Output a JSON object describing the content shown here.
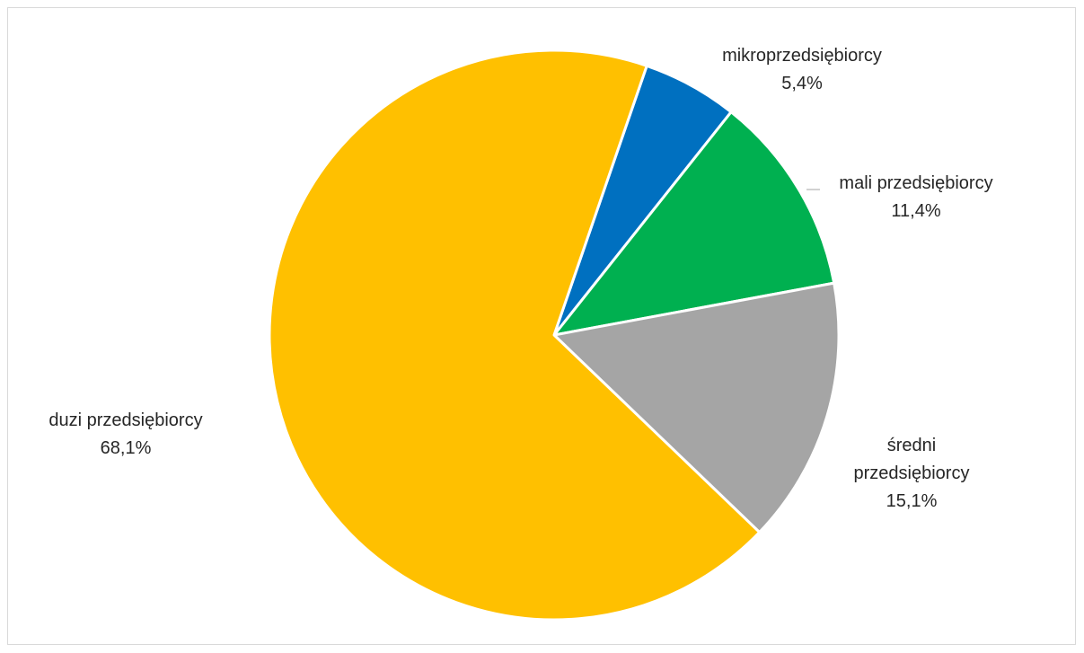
{
  "chart_data": {
    "type": "pie",
    "title": "",
    "legend": "none",
    "unit": "%",
    "slices": [
      {
        "name": "mikroprzedsiębiorcy",
        "label_lines": [
          "mikroprzedsiębiorcy"
        ],
        "value": 5.4,
        "display": "5,4%",
        "color": "#0070C0"
      },
      {
        "name": "mali przedsiębiorcy",
        "label_lines": [
          "mali przedsiębiorcy"
        ],
        "value": 11.4,
        "display": "11,4%",
        "color": "#00B050"
      },
      {
        "name": "średni przedsiębiorcy",
        "label_lines": [
          "średni",
          "przedsiębiorcy"
        ],
        "value": 15.1,
        "display": "15,1%",
        "color": "#A5A5A5"
      },
      {
        "name": "duzi przedsiębiorcy",
        "label_lines": [
          "duzi przedsiębiorcy"
        ],
        "value": 68.1,
        "display": "68,1%",
        "color": "#FFC000"
      }
    ]
  }
}
